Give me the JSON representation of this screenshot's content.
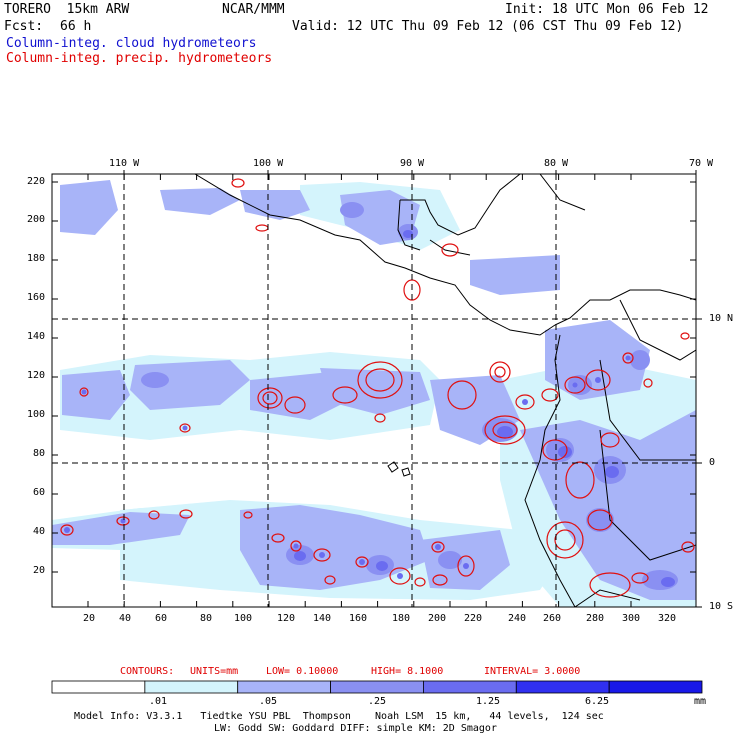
{
  "header": {
    "model": "TORERO  15km ARW",
    "org": "NCAR/MMM",
    "init": "Init: 18 UTC Mon 06 Feb 12",
    "fcst_label": "Fcst:",
    "fcst_hours": "66 h",
    "valid": "Valid: 12 UTC Thu 09 Feb 12 (06 CST Thu 09 Feb 12)",
    "legend_cloud": "Column-integ. cloud hydrometeors",
    "legend_precip": "Column-integ. precip. hydrometeors"
  },
  "colors": {
    "cloud_text": "#1010d0",
    "precip_text": "#e00000",
    "contour": "#e01010",
    "cloud_levels": [
      "#ffffff",
      "#d4f4fc",
      "#a8b4f8",
      "#8a90f2",
      "#6a6cf0",
      "#3030f0",
      "#1818e8"
    ]
  },
  "map": {
    "lon_labels": [
      "110 W",
      "100 W",
      "90 W",
      "80 W",
      "70 W"
    ],
    "lat_labels": [
      "10 N",
      "0",
      "10 S"
    ],
    "y_ticks": [
      "220",
      "200",
      "180",
      "160",
      "140",
      "120",
      "100",
      "80",
      "60",
      "40",
      "20"
    ],
    "x_ticks": [
      "20",
      "40",
      "60",
      "80",
      "100",
      "120",
      "140",
      "160",
      "180",
      "200",
      "220",
      "240",
      "260",
      "280",
      "300",
      "320"
    ]
  },
  "contours_info": {
    "label": "CONTOURS:",
    "units": "UNITS=mm",
    "low": "LOW= 0.10000",
    "high": "HIGH= 8.1000",
    "interval": "INTERVAL= 3.0000"
  },
  "scale": {
    "tick_labels": [
      ".01",
      ".05",
      ".25",
      "1.25",
      "6.25"
    ],
    "units": "mm"
  },
  "footer": {
    "line1": "Model Info: V3.3.1   Tiedtke YSU PBL  Thompson    Noah LSM  15 km,   44 levels,  124 sec",
    "line2": "LW: Godd SW: Goddard DIFF: simple KM: 2D Smagor"
  }
}
